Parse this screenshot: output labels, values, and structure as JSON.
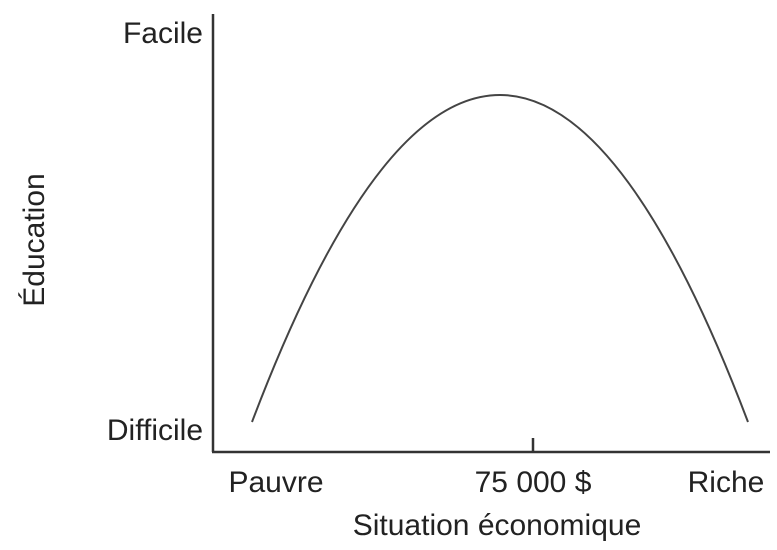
{
  "y_axis": {
    "title": "Éducation",
    "top_label": "Facile",
    "bottom_label": "Difficile"
  },
  "x_axis": {
    "title": "Situation économique",
    "left_label": "Pauvre",
    "middle_label": "75 000 $",
    "right_label": "Riche"
  }
}
